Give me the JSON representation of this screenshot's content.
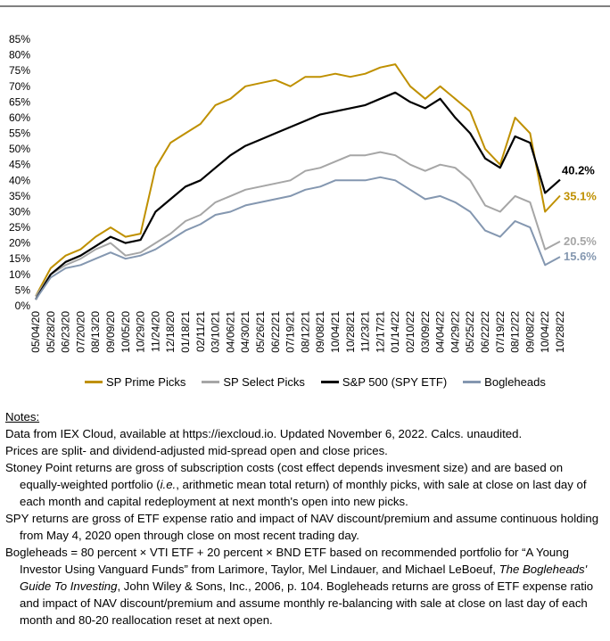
{
  "chart_data": {
    "type": "line",
    "ylim": [
      0,
      85
    ],
    "y_tick_labels": [
      "0%",
      "5%",
      "10%",
      "15%",
      "20%",
      "25%",
      "30%",
      "35%",
      "40%",
      "45%",
      "50%",
      "55%",
      "60%",
      "65%",
      "70%",
      "75%",
      "80%",
      "85%"
    ],
    "x_tick_labels": [
      "05/04/20",
      "05/28/20",
      "06/23/20",
      "07/20/20",
      "08/13/20",
      "09/09/20",
      "10/05/20",
      "10/29/20",
      "11/24/20",
      "12/18/20",
      "01/18/21",
      "02/11/21",
      "03/10/21",
      "04/06/21",
      "04/30/21",
      "05/26/21",
      "06/22/21",
      "07/19/21",
      "08/12/21",
      "09/08/21",
      "10/04/21",
      "10/28/21",
      "11/23/21",
      "12/17/21",
      "01/14/22",
      "02/10/22",
      "03/09/22",
      "04/04/22",
      "04/29/22",
      "05/25/22",
      "06/22/22",
      "07/19/22",
      "08/12/22",
      "09/08/22",
      "10/04/22",
      "10/28/22"
    ],
    "series": [
      {
        "name": "SP Prime Picks",
        "color": "#bf9000",
        "end_label": "35.1%",
        "values": [
          3,
          12,
          16,
          18,
          22,
          25,
          22,
          23,
          44,
          52,
          55,
          58,
          64,
          66,
          70,
          71,
          72,
          70,
          73,
          73,
          74,
          73,
          74,
          76,
          77,
          70,
          66,
          70,
          66,
          62,
          50,
          45,
          60,
          55,
          30,
          35.1
        ]
      },
      {
        "name": "SP Select Picks",
        "color": "#a6a6a6",
        "end_label": "20.5%",
        "values": [
          3,
          10,
          13,
          15,
          18,
          20,
          16,
          17,
          20,
          23,
          27,
          29,
          33,
          35,
          37,
          38,
          39,
          40,
          43,
          44,
          46,
          48,
          48,
          49,
          48,
          45,
          43,
          45,
          44,
          40,
          32,
          30,
          35,
          33,
          18,
          20.5
        ]
      },
      {
        "name": "S&P 500 (SPY ETF)",
        "color": "#000000",
        "end_label": "40.2%",
        "values": [
          2,
          10,
          14,
          16,
          19,
          22,
          20,
          21,
          30,
          34,
          38,
          40,
          44,
          48,
          51,
          53,
          55,
          57,
          59,
          61,
          62,
          63,
          64,
          66,
          68,
          65,
          63,
          66,
          60,
          55,
          47,
          44,
          54,
          52,
          36,
          40.2
        ]
      },
      {
        "name": "Bogleheads",
        "color": "#8497b0",
        "end_label": "15.6%",
        "values": [
          2,
          9,
          12,
          13,
          15,
          17,
          15,
          16,
          18,
          21,
          24,
          26,
          29,
          30,
          32,
          33,
          34,
          35,
          37,
          38,
          40,
          40,
          40,
          41,
          40,
          37,
          34,
          35,
          33,
          30,
          24,
          22,
          27,
          25,
          13,
          15.6
        ]
      }
    ]
  },
  "legend": {
    "item0": "SP Prime Picks",
    "item1": "SP Select Picks",
    "item2": "S&P 500 (SPY ETF)",
    "item3": "Bogleheads"
  },
  "notes": {
    "title": "Notes:",
    "line1": "Data from IEX Cloud, available at https://iexcloud.io. Updated November 6, 2022. Calcs. unaudited.",
    "line2": "Prices are split- and dividend-adjusted mid-spread open and close prices.",
    "line3a": "Stoney Point returns are gross of subscription costs (cost effect depends invesment size) and are based on equally-weighted portfolio (",
    "line3ie": "i.e.",
    "line3b": ", arithmetic mean total return) of monthly picks, with sale at close on last day of each month and capital redeployment at next month's open into new picks.",
    "line4": "SPY returns are gross of ETF expense ratio and impact of NAV discount/premium and assume continuous holding from May 4, 2020 open through close on most recent trading day.",
    "line5a": "Bogleheads = 80 percent × VTI ETF + 20 percent × BND ETF based on recommended portfolio for “A Young Investor Using Vanguard Funds” from Larimore, Taylor, Mel Lindauer, and Michael LeBoeuf, ",
    "line5book": "The Bogleheads' Guide To Investing",
    "line5b": ", John Wiley & Sons, Inc., 2006, p. 104. Bogleheads returns are gross of ETF expense ratio and impact of NAV discount/premium and assume monthly re-balancing with sale at close on last day of each month and 80-20 reallocation reset at next open."
  }
}
